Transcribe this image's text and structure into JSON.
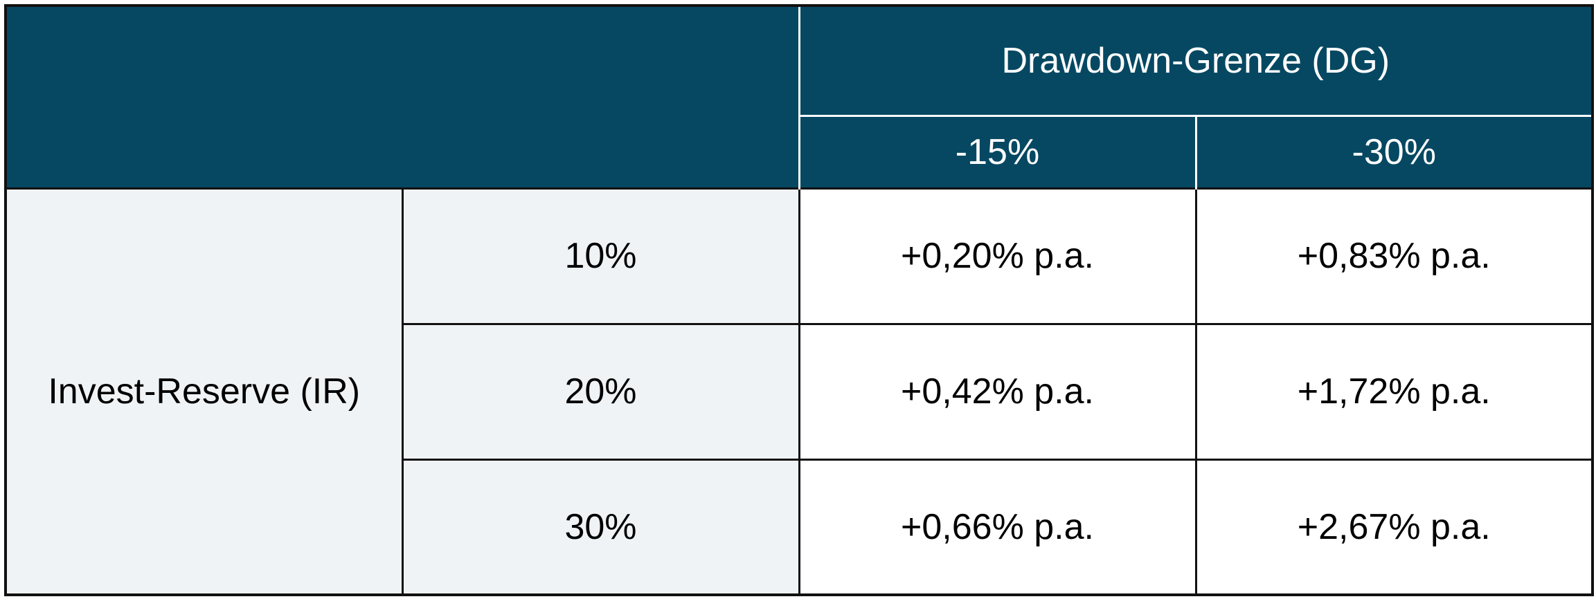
{
  "header": {
    "title": "Drawdown-Grenze (DG)",
    "columns": [
      "-15%",
      "-30%"
    ]
  },
  "row_group": "Invest-Reserve (IR)",
  "rows": [
    {
      "label": "10%",
      "values": [
        "+0,20% p.a.",
        "+0,83% p.a."
      ]
    },
    {
      "label": "20%",
      "values": [
        "+0,42% p.a.",
        "+1,72% p.a."
      ]
    },
    {
      "label": "30%",
      "values": [
        "+0,66% p.a.",
        "+2,67% p.a."
      ]
    }
  ]
}
